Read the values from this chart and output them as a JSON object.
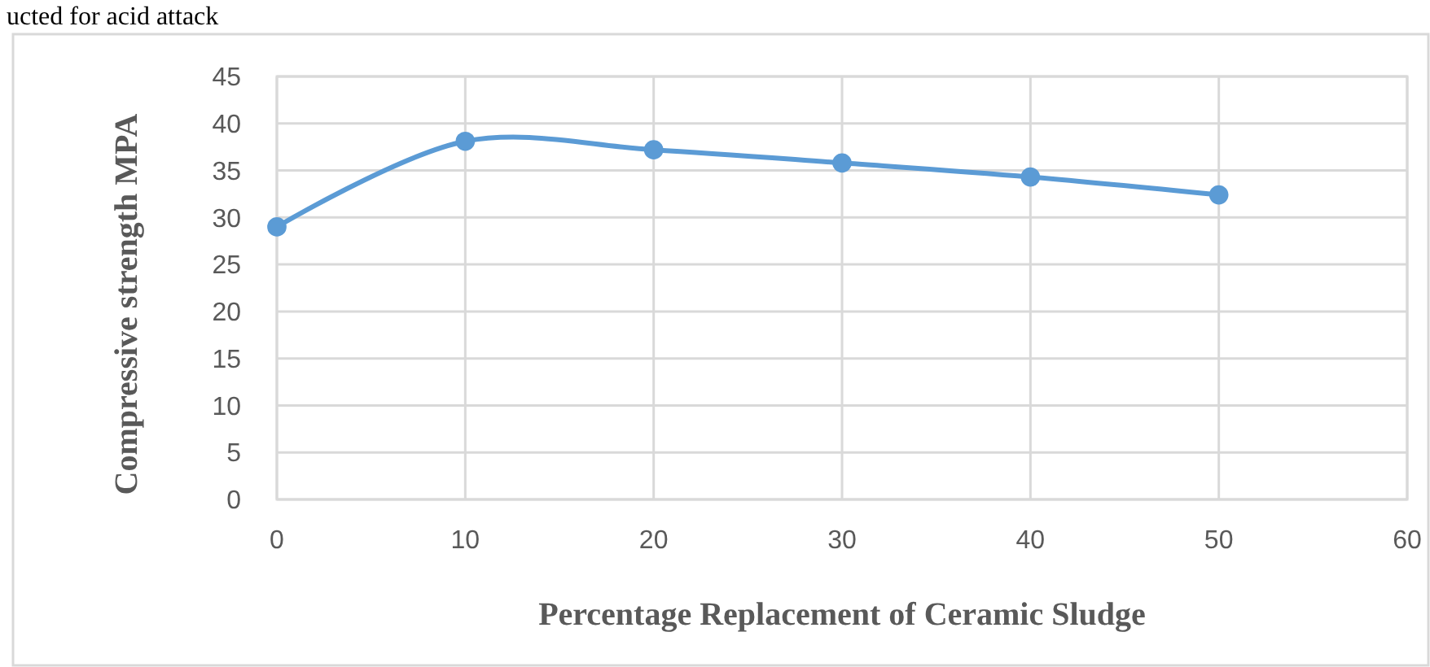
{
  "chart_data": {
    "type": "line",
    "xlabel": "Percentage Replacement of Ceramic Sludge",
    "ylabel": "Compressive strength MPA",
    "annotations": [
      "ucted for acid attack"
    ],
    "x": [
      0,
      10,
      20,
      30,
      40,
      50
    ],
    "series": [
      {
        "color": "#5b9bd5",
        "values": [
          29,
          38.1,
          37.2,
          35.8,
          34.3,
          32.4
        ]
      }
    ],
    "xlim": [
      0,
      60
    ],
    "xticks": [
      0,
      10,
      20,
      30,
      40,
      50,
      60
    ],
    "ylim": [
      0,
      45
    ],
    "yticks": [
      0,
      5,
      10,
      15,
      20,
      25,
      30,
      35,
      40,
      45
    ],
    "grid": true,
    "marker": "circle",
    "line_style": "solid"
  }
}
